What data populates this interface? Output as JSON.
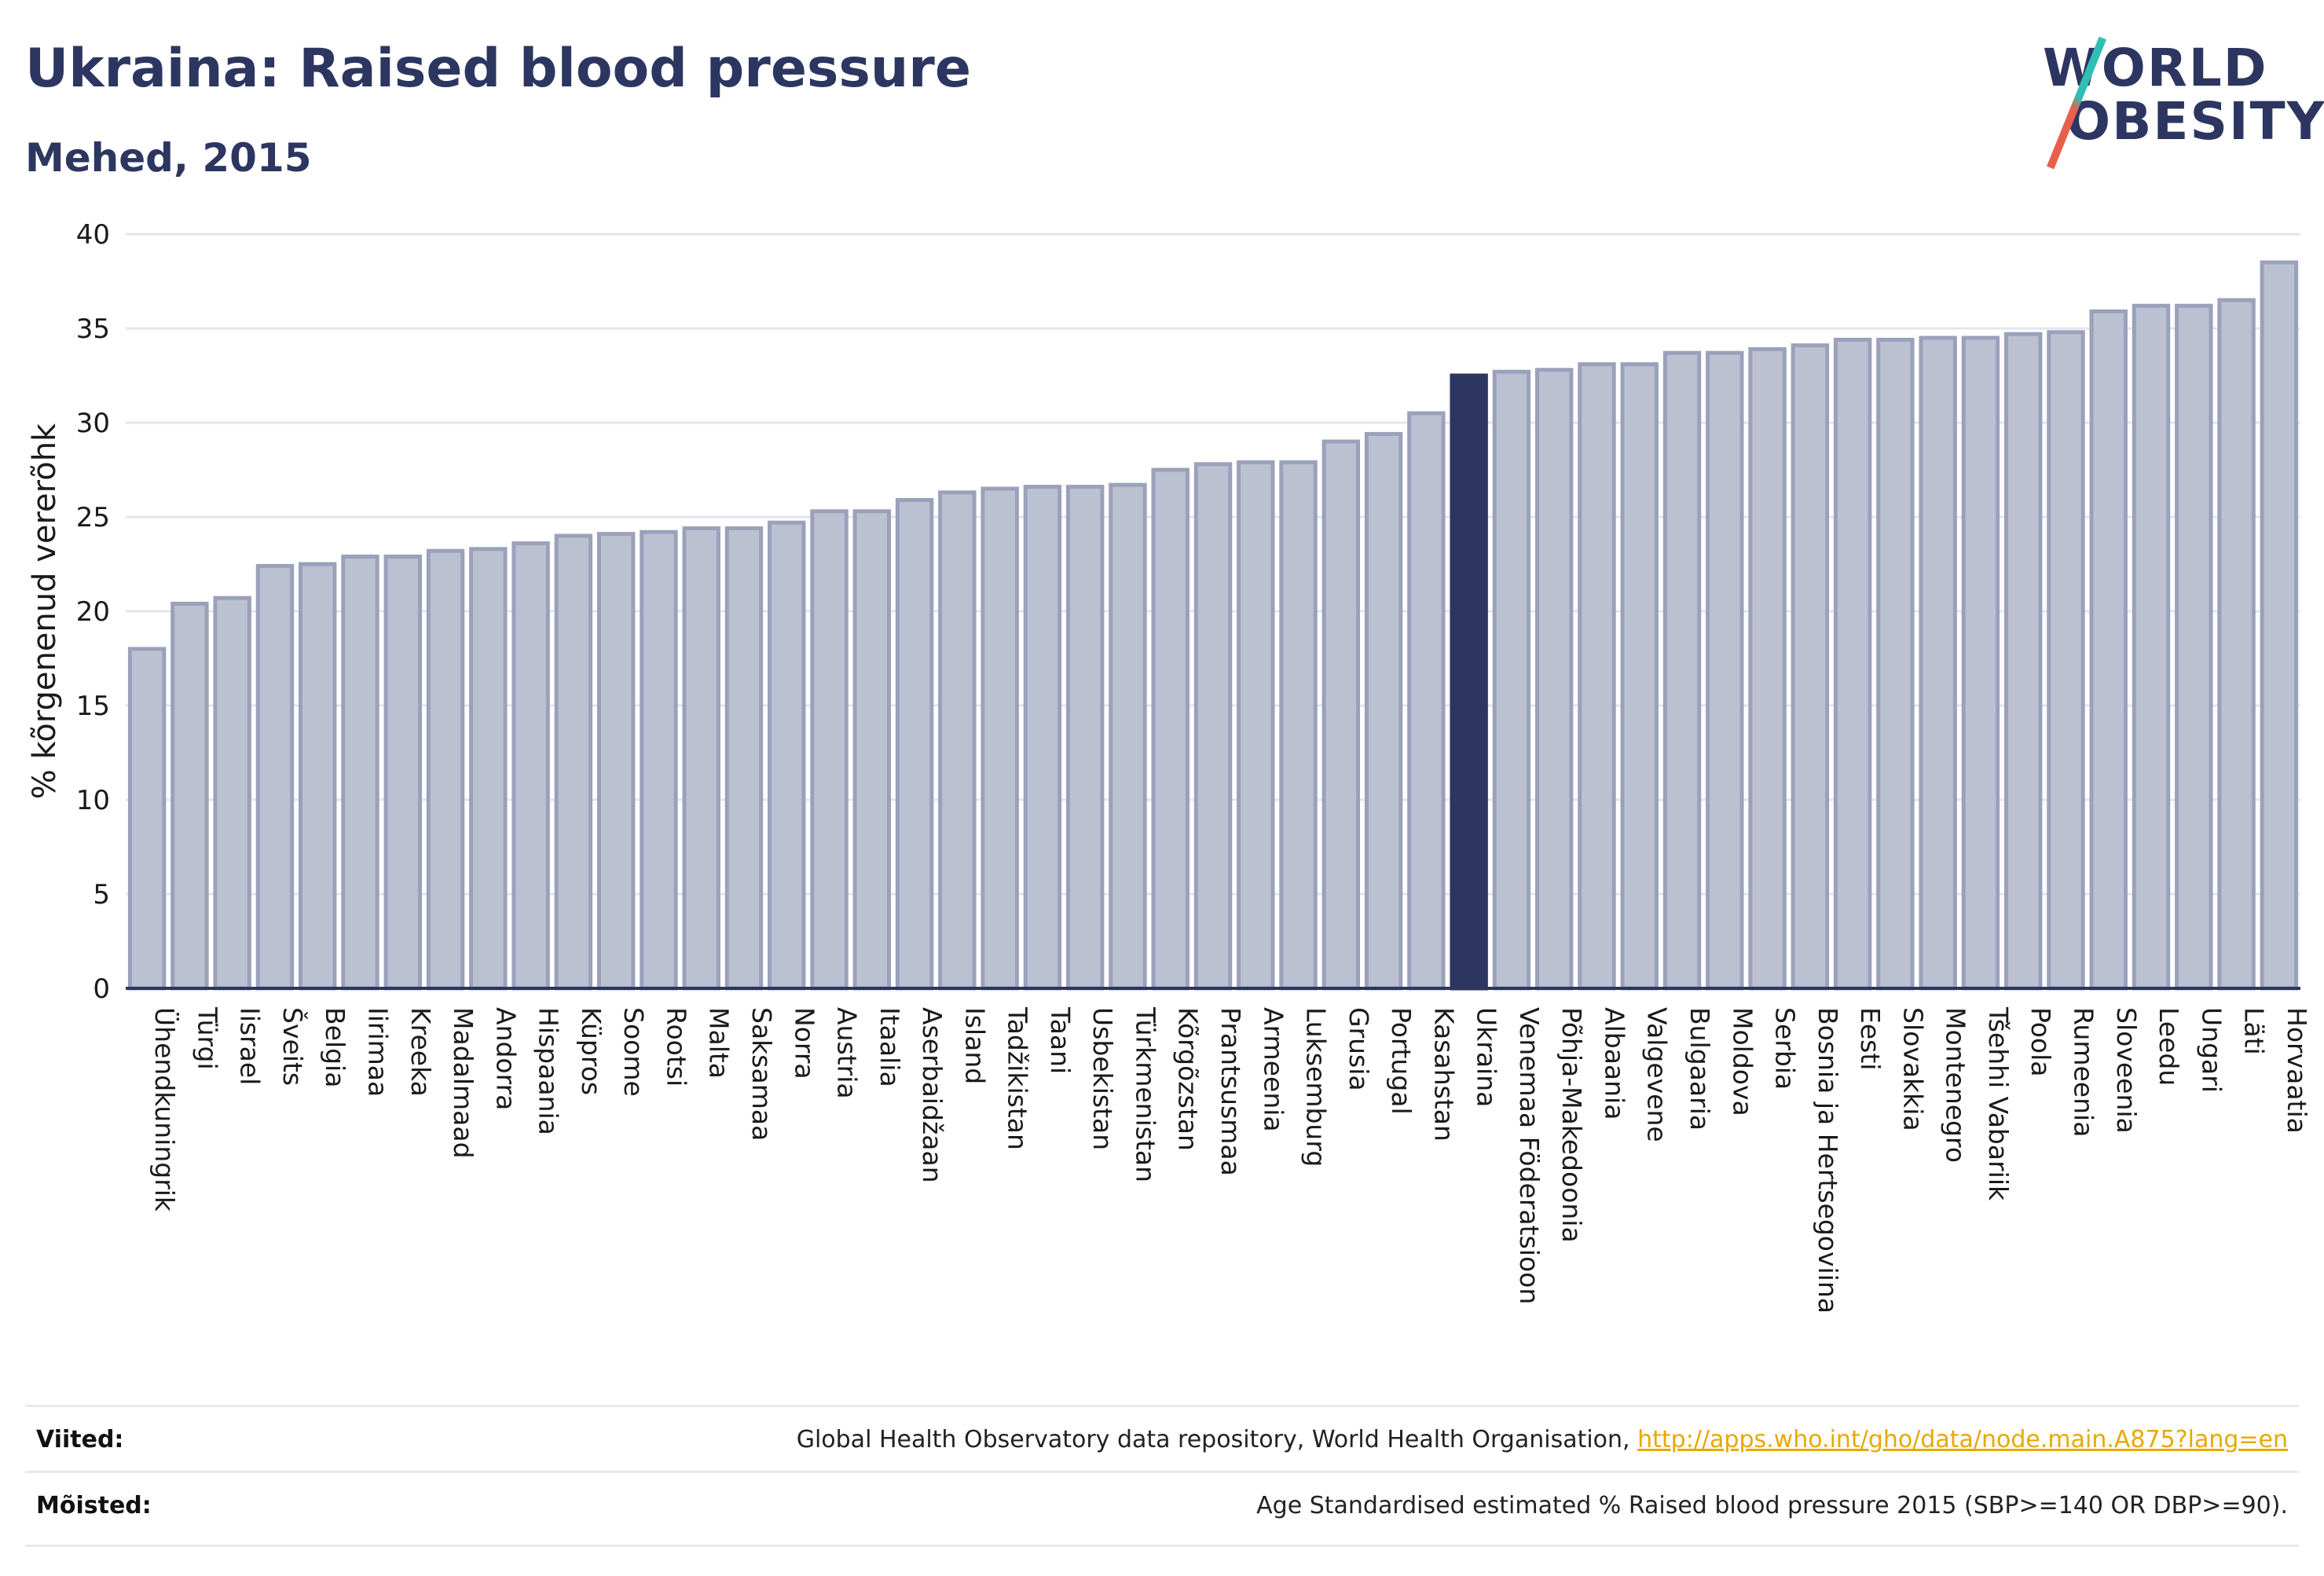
{
  "header": {
    "title": "Ukraina: Raised blood pressure",
    "subtitle": "Mehed, 2015"
  },
  "logo": {
    "line1": "WORLD",
    "line2": "OBESITY"
  },
  "colors": {
    "bar_fill": "#bcc1d1",
    "bar_stroke": "#9aa1ba",
    "highlight": "#2c3660",
    "grid": "#e3e6ee",
    "axis": "#2c3660",
    "link": "#e8a800"
  },
  "chart_data": {
    "type": "bar",
    "ylabel": "% kõrgenenud vererõhk",
    "xlabel": "",
    "ylim": [
      0,
      40
    ],
    "yticks": [
      0,
      5,
      10,
      15,
      20,
      25,
      30,
      35,
      40
    ],
    "grid": true,
    "highlight": "Ukraina",
    "categories": [
      "Ühendkuningrik",
      "Türgi",
      "Iisrael",
      "Šveits",
      "Belgia",
      "Iirimaa",
      "Kreeka",
      "Madalmaad",
      "Andorra",
      "Hispaania",
      "Küpros",
      "Soome",
      "Rootsi",
      "Malta",
      "Saksamaa",
      "Norra",
      "Austria",
      "Itaalia",
      "Aserbaidžaan",
      "Island",
      "Tadžikistan",
      "Taani",
      "Usbekistan",
      "Türkmenistan",
      "Kõrgõzstan",
      "Prantsusmaa",
      "Armeenia",
      "Luksemburg",
      "Grusia",
      "Portugal",
      "Kasahstan",
      "Ukraina",
      "Venemaa Föderatsioon",
      "Põhja-Makedoonia",
      "Albaania",
      "Valgevene",
      "Bulgaaria",
      "Moldova",
      "Serbia",
      "Bosnia ja Hertsegoviina",
      "Eesti",
      "Slovakkia",
      "Montenegro",
      "Tšehhi Vabariik",
      "Poola",
      "Rumeenia",
      "Sloveenia",
      "Leedu",
      "Ungari",
      "Läti",
      "Horvaatia"
    ],
    "values": [
      18.0,
      20.4,
      20.7,
      22.4,
      22.5,
      22.9,
      22.9,
      23.2,
      23.3,
      23.6,
      24.0,
      24.1,
      24.2,
      24.4,
      24.4,
      24.7,
      25.3,
      25.3,
      25.9,
      26.3,
      26.5,
      26.6,
      26.6,
      26.7,
      27.5,
      27.8,
      27.9,
      27.9,
      29.0,
      29.4,
      30.5,
      32.5,
      32.7,
      32.8,
      33.1,
      33.1,
      33.7,
      33.7,
      33.9,
      34.1,
      34.4,
      34.4,
      34.5,
      34.5,
      34.7,
      34.8,
      35.9,
      36.2,
      36.2,
      36.5,
      38.5
    ]
  },
  "footer": {
    "sources_label": "Viited:",
    "sources_text": "Global Health Observatory data repository, World Health Organisation,",
    "sources_link": "http://apps.who.int/gho/data/node.main.A875?lang=en",
    "definitions_label": "Mõisted:",
    "definitions_text": "Age Standardised estimated % Raised blood pressure 2015 (SBP>=140 OR DBP>=90)."
  }
}
